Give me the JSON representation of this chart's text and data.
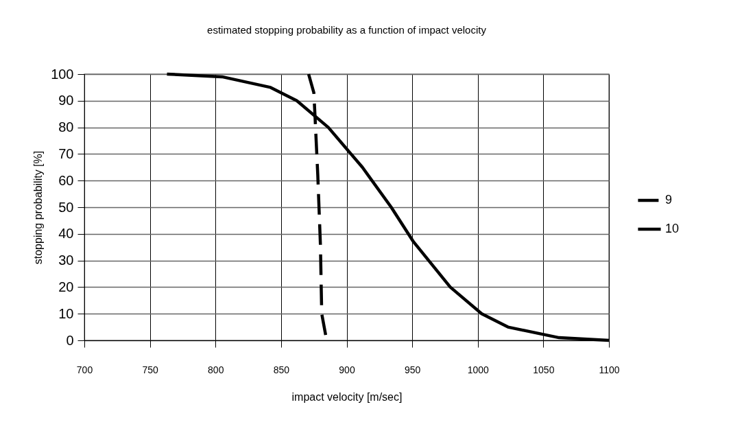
{
  "chart_data": {
    "type": "line",
    "title": "estimated stopping probability as a function of impact velocity",
    "xlabel": "impact velocity [m/sec]",
    "ylabel": "stopping probability [%]",
    "xlim": [
      700,
      1100
    ],
    "xticks": [
      700,
      750,
      800,
      850,
      900,
      950,
      1000,
      1050,
      1100
    ],
    "ylim": [
      0,
      100
    ],
    "yticks": [
      0,
      10,
      20,
      30,
      40,
      50,
      60,
      70,
      80,
      90,
      100
    ],
    "grid": true,
    "legend": "right",
    "series": [
      {
        "name": "9",
        "color": "#000000",
        "line_style": "dashed",
        "x": [
          871,
          875,
          876,
          878,
          880,
          881,
          884,
          886
        ],
        "values": [
          100,
          93,
          83,
          62,
          36,
          10,
          2,
          0
        ]
      },
      {
        "name": "10",
        "color": "#000000",
        "line_style": "solid",
        "x": [
          763,
          805,
          842,
          862,
          886,
          912,
          934,
          951,
          979,
          1003,
          1023,
          1062,
          1100
        ],
        "values": [
          100,
          99,
          95,
          90,
          80,
          65,
          50,
          37,
          20,
          10,
          5,
          1,
          0
        ]
      }
    ]
  }
}
